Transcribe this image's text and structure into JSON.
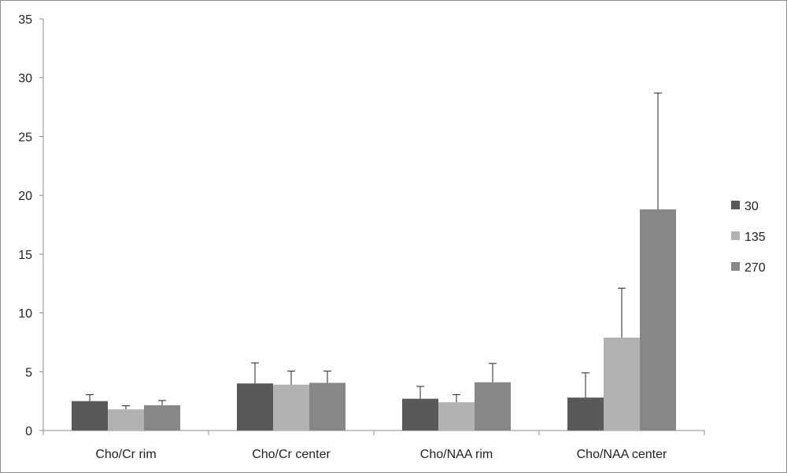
{
  "chart_data": {
    "type": "bar",
    "title": "",
    "xlabel": "",
    "ylabel": "",
    "ylim": [
      0,
      35
    ],
    "yticks": [
      0,
      5,
      10,
      15,
      20,
      25,
      30,
      35
    ],
    "grid": false,
    "legend_position": "right",
    "categories": [
      "Cho/Cr rim",
      "Cho/Cr center",
      "Cho/NAA rim",
      "Cho/NAA center"
    ],
    "series": [
      {
        "name": "30",
        "color": "#595959",
        "values": [
          2.5,
          4.0,
          2.7,
          2.8
        ],
        "errors": [
          0.55,
          1.75,
          1.05,
          2.1
        ]
      },
      {
        "name": "135",
        "color": "#b2b2b2",
        "values": [
          1.8,
          3.9,
          2.4,
          7.9
        ],
        "errors": [
          0.3,
          1.15,
          0.65,
          4.2
        ]
      },
      {
        "name": "270",
        "color": "#878787",
        "values": [
          2.15,
          4.05,
          4.1,
          18.8
        ],
        "errors": [
          0.4,
          1.0,
          1.6,
          9.9
        ]
      }
    ]
  }
}
